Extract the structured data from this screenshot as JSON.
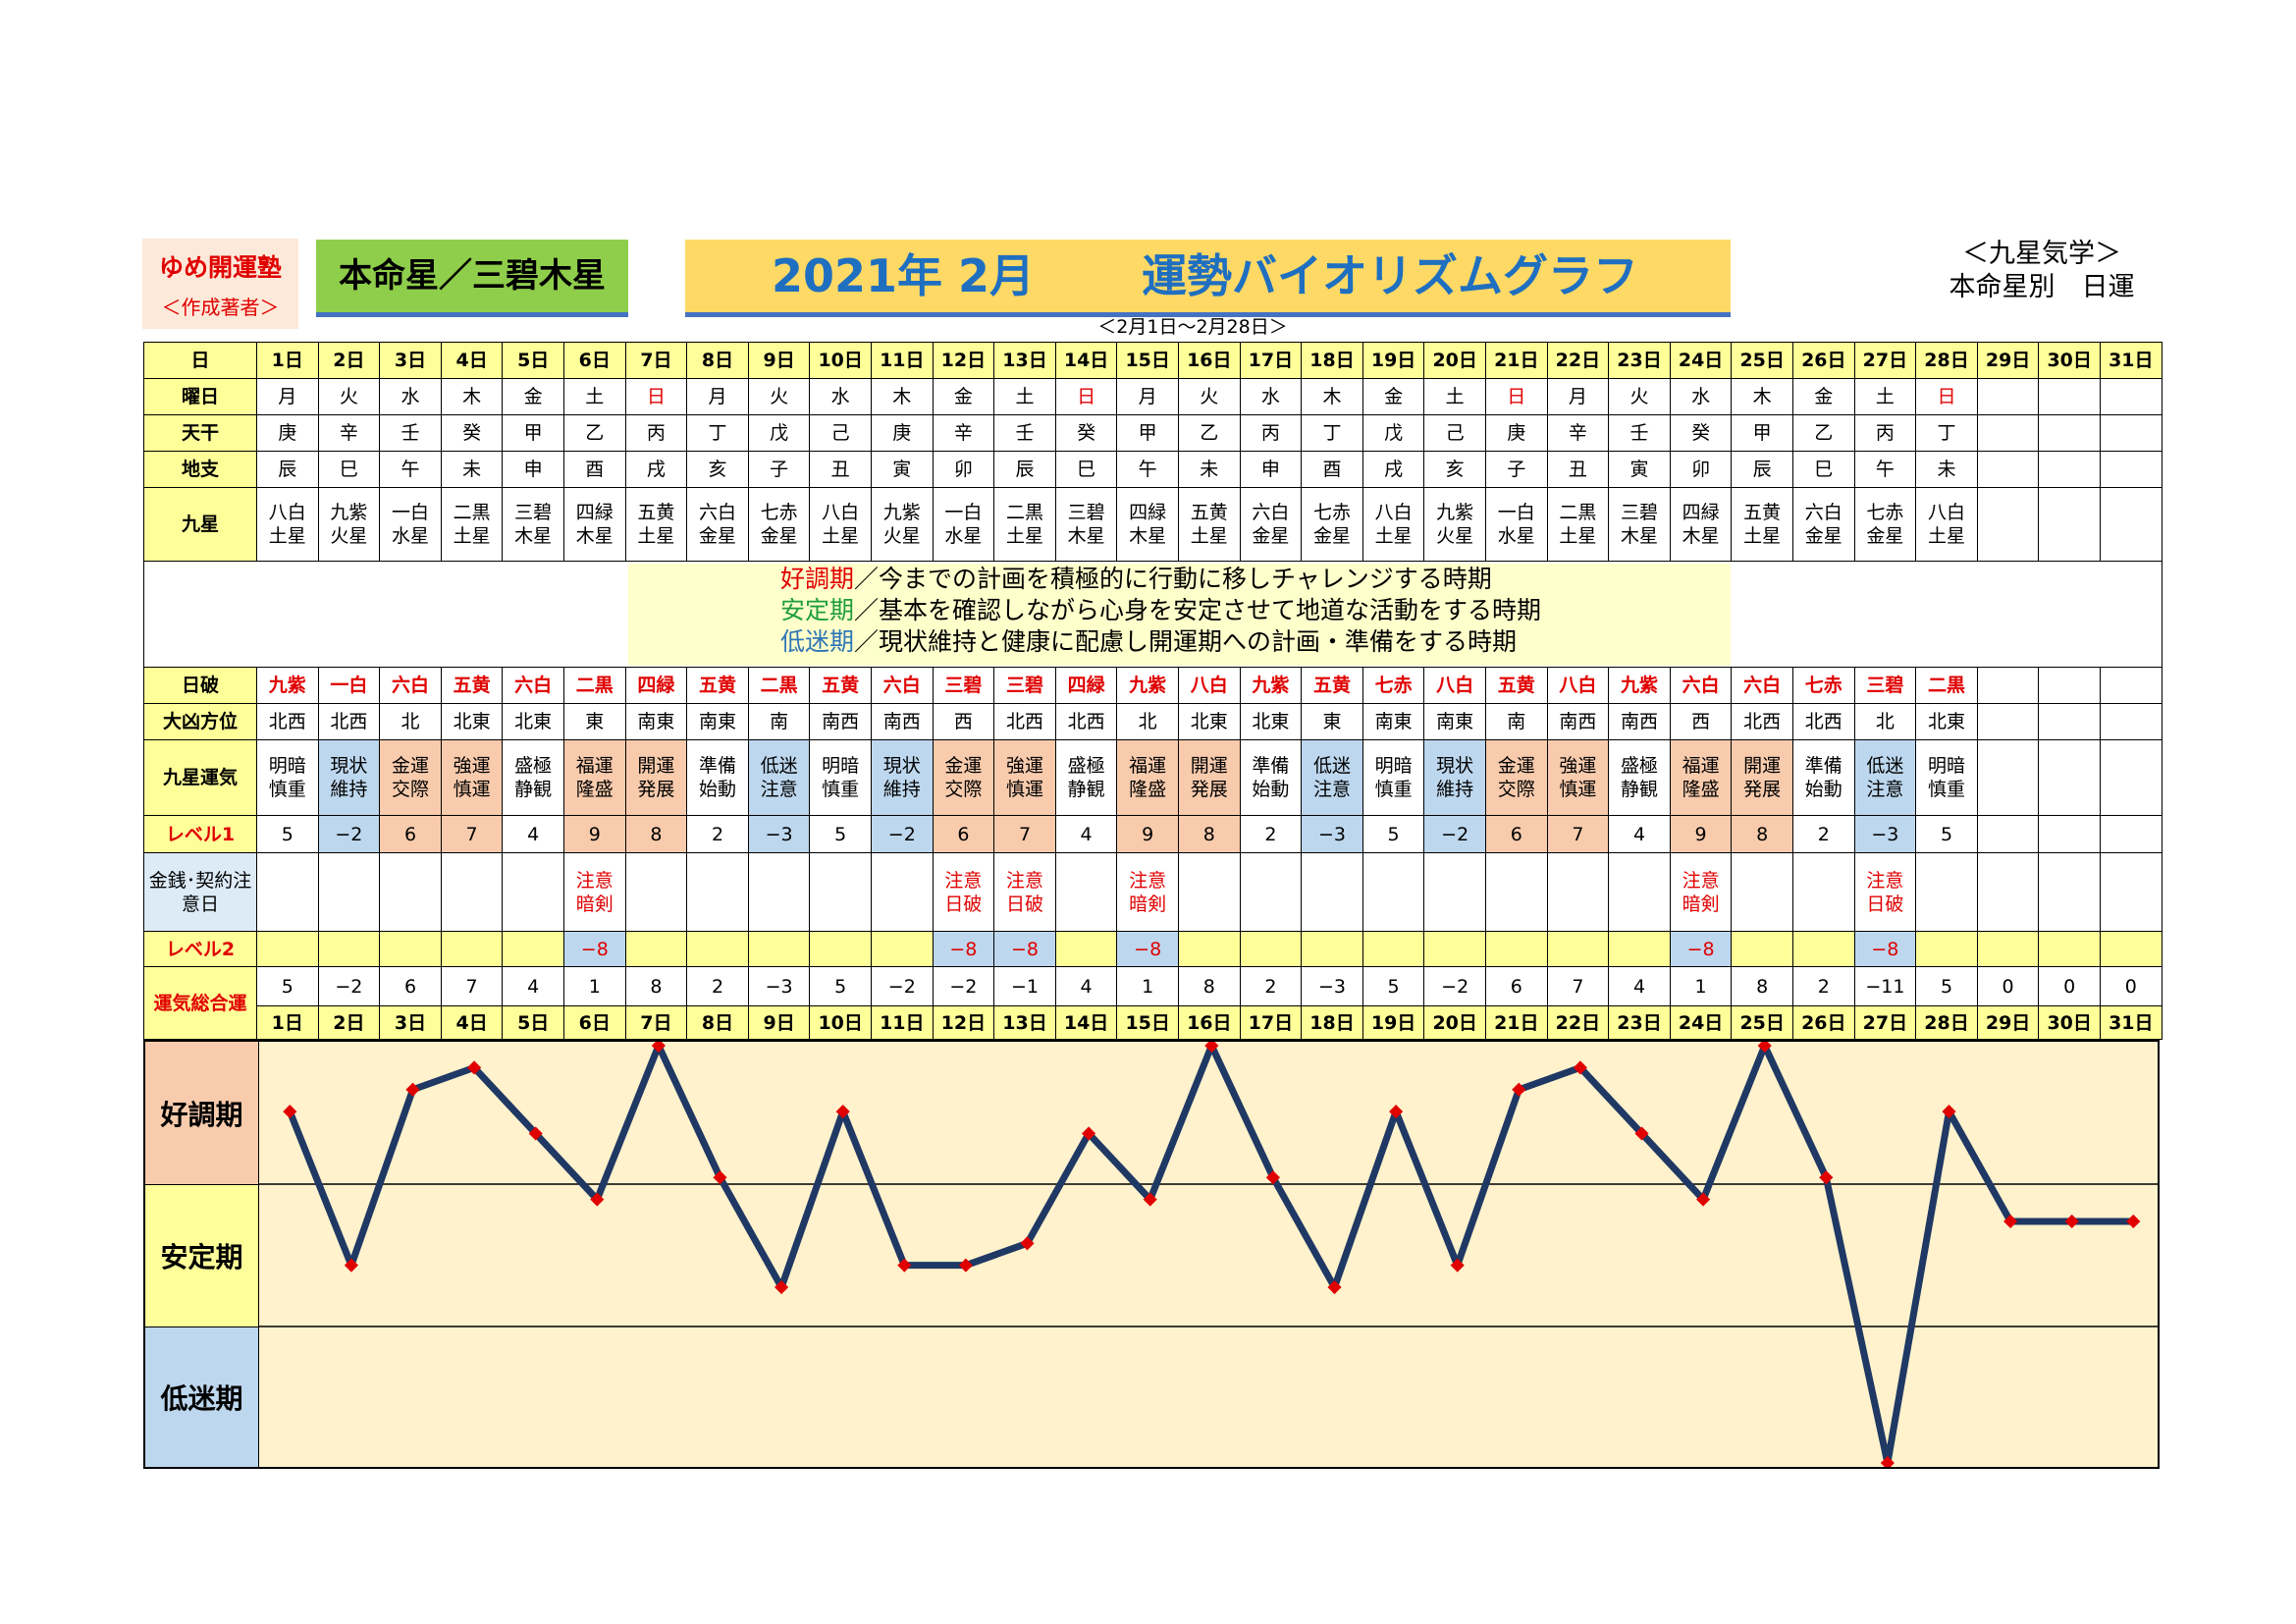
{
  "header": {
    "juku_name": "ゆめ開運塾",
    "juku_sub": "＜作成著者＞",
    "honmei": "本命星／三碧木星",
    "year_month": "2021年 2月",
    "title": "運勢バイオリズムグラフ",
    "range": "＜2月1日～2月28日＞",
    "kasei_line1": "＜九星気学＞",
    "kasei_line2": "本命星別　日運"
  },
  "row_labels": {
    "day": "日",
    "weekday": "曜日",
    "tenkan": "天干",
    "chishi": "地支",
    "kyusei": "九星",
    "nippa": "日破",
    "daikyo": "大凶方位",
    "unki": "九星運気",
    "level1": "レベル1",
    "kinsen": "金銭･契約注意日",
    "level2": "レベル2",
    "sogo": "運気総合運"
  },
  "legend": {
    "good_label": "好調期",
    "good_text": "／今までの計画を積極的に行動に移しチャレンジする時期",
    "stable_label": "安定期",
    "stable_text": "／基本を確認しながら心身を安定させて地道な活動をする時期",
    "low_label": "低迷期",
    "low_text": "／現状維持と健康に配慮し開運期への計画・準備をする時期"
  },
  "zones": [
    "好調期",
    "安定期",
    "低迷期"
  ],
  "days": [
    "1日",
    "2日",
    "3日",
    "4日",
    "5日",
    "6日",
    "7日",
    "8日",
    "9日",
    "10日",
    "11日",
    "12日",
    "13日",
    "14日",
    "15日",
    "16日",
    "17日",
    "18日",
    "19日",
    "20日",
    "21日",
    "22日",
    "23日",
    "24日",
    "25日",
    "26日",
    "27日",
    "28日",
    "29日",
    "30日",
    "31日"
  ],
  "weekday": [
    "月",
    "火",
    "水",
    "木",
    "金",
    "土",
    "日",
    "月",
    "火",
    "水",
    "木",
    "金",
    "土",
    "日",
    "月",
    "火",
    "水",
    "木",
    "金",
    "土",
    "日",
    "月",
    "火",
    "水",
    "木",
    "金",
    "土",
    "日",
    "",
    "",
    ""
  ],
  "tenkan": [
    "庚",
    "辛",
    "壬",
    "癸",
    "甲",
    "乙",
    "丙",
    "丁",
    "戊",
    "己",
    "庚",
    "辛",
    "壬",
    "癸",
    "甲",
    "乙",
    "丙",
    "丁",
    "戊",
    "己",
    "庚",
    "辛",
    "壬",
    "癸",
    "甲",
    "乙",
    "丙",
    "丁",
    "",
    "",
    ""
  ],
  "chishi": [
    "辰",
    "巳",
    "午",
    "未",
    "申",
    "酉",
    "戌",
    "亥",
    "子",
    "丑",
    "寅",
    "卯",
    "辰",
    "巳",
    "午",
    "未",
    "申",
    "酉",
    "戌",
    "亥",
    "子",
    "丑",
    "寅",
    "卯",
    "辰",
    "巳",
    "午",
    "未",
    "",
    "",
    ""
  ],
  "kyusei": [
    [
      "八白",
      "土星"
    ],
    [
      "九紫",
      "火星"
    ],
    [
      "一白",
      "水星"
    ],
    [
      "二黒",
      "土星"
    ],
    [
      "三碧",
      "木星"
    ],
    [
      "四緑",
      "木星"
    ],
    [
      "五黄",
      "土星"
    ],
    [
      "六白",
      "金星"
    ],
    [
      "七赤",
      "金星"
    ],
    [
      "八白",
      "土星"
    ],
    [
      "九紫",
      "火星"
    ],
    [
      "一白",
      "水星"
    ],
    [
      "二黒",
      "土星"
    ],
    [
      "三碧",
      "木星"
    ],
    [
      "四緑",
      "木星"
    ],
    [
      "五黄",
      "土星"
    ],
    [
      "六白",
      "金星"
    ],
    [
      "七赤",
      "金星"
    ],
    [
      "八白",
      "土星"
    ],
    [
      "九紫",
      "火星"
    ],
    [
      "一白",
      "水星"
    ],
    [
      "二黒",
      "土星"
    ],
    [
      "三碧",
      "木星"
    ],
    [
      "四緑",
      "木星"
    ],
    [
      "五黄",
      "土星"
    ],
    [
      "六白",
      "金星"
    ],
    [
      "七赤",
      "金星"
    ],
    [
      "八白",
      "土星"
    ],
    [
      "",
      ""
    ],
    [
      "",
      ""
    ],
    [
      "",
      ""
    ]
  ],
  "nippa": [
    "九紫",
    "一白",
    "六白",
    "五黄",
    "六白",
    "二黒",
    "四緑",
    "五黄",
    "二黒",
    "五黄",
    "六白",
    "三碧",
    "三碧",
    "四緑",
    "九紫",
    "八白",
    "九紫",
    "五黄",
    "七赤",
    "八白",
    "五黄",
    "八白",
    "九紫",
    "六白",
    "六白",
    "七赤",
    "三碧",
    "二黒",
    "",
    "",
    ""
  ],
  "daikyo": [
    "北西",
    "北西",
    "北",
    "北東",
    "北東",
    "東",
    "南東",
    "南東",
    "南",
    "南西",
    "南西",
    "西",
    "北西",
    "北西",
    "北",
    "北東",
    "北東",
    "東",
    "南東",
    "南東",
    "南",
    "南西",
    "南西",
    "西",
    "北西",
    "北西",
    "北",
    "北東",
    "",
    "",
    ""
  ],
  "unki": [
    [
      "明暗",
      "慎重"
    ],
    [
      "現状",
      "維持"
    ],
    [
      "金運",
      "交際"
    ],
    [
      "強運",
      "慎運"
    ],
    [
      "盛極",
      "静観"
    ],
    [
      "福運",
      "隆盛"
    ],
    [
      "開運",
      "発展"
    ],
    [
      "準備",
      "始動"
    ],
    [
      "低迷",
      "注意"
    ],
    [
      "明暗",
      "慎重"
    ],
    [
      "現状",
      "維持"
    ],
    [
      "金運",
      "交際"
    ],
    [
      "強運",
      "慎運"
    ],
    [
      "盛極",
      "静観"
    ],
    [
      "福運",
      "隆盛"
    ],
    [
      "開運",
      "発展"
    ],
    [
      "準備",
      "始動"
    ],
    [
      "低迷",
      "注意"
    ],
    [
      "明暗",
      "慎重"
    ],
    [
      "現状",
      "維持"
    ],
    [
      "金運",
      "交際"
    ],
    [
      "強運",
      "慎運"
    ],
    [
      "盛極",
      "静観"
    ],
    [
      "福運",
      "隆盛"
    ],
    [
      "開運",
      "発展"
    ],
    [
      "準備",
      "始動"
    ],
    [
      "低迷",
      "注意"
    ],
    [
      "明暗",
      "慎重"
    ],
    [
      "",
      ""
    ],
    [
      "",
      ""
    ],
    [
      "",
      ""
    ]
  ],
  "level1": [
    "5",
    "−2",
    "6",
    "7",
    "4",
    "9",
    "8",
    "2",
    "−3",
    "5",
    "−2",
    "6",
    "7",
    "4",
    "9",
    "8",
    "2",
    "−3",
    "5",
    "−2",
    "6",
    "7",
    "4",
    "9",
    "8",
    "2",
    "−3",
    "5",
    "",
    "",
    ""
  ],
  "kinsen": [
    [
      "",
      ""
    ],
    [
      "",
      ""
    ],
    [
      "",
      ""
    ],
    [
      "",
      ""
    ],
    [
      "",
      ""
    ],
    [
      "注意",
      "暗剣"
    ],
    [
      "",
      ""
    ],
    [
      "",
      ""
    ],
    [
      "",
      ""
    ],
    [
      "",
      ""
    ],
    [
      "",
      ""
    ],
    [
      "注意",
      "日破"
    ],
    [
      "注意",
      "日破"
    ],
    [
      "",
      ""
    ],
    [
      "注意",
      "暗剣"
    ],
    [
      "",
      ""
    ],
    [
      "",
      ""
    ],
    [
      "",
      ""
    ],
    [
      "",
      ""
    ],
    [
      "",
      ""
    ],
    [
      "",
      ""
    ],
    [
      "",
      ""
    ],
    [
      "",
      ""
    ],
    [
      "注意",
      "暗剣"
    ],
    [
      "",
      ""
    ],
    [
      "",
      ""
    ],
    [
      "注意",
      "日破"
    ],
    [
      "",
      ""
    ],
    [
      "",
      ""
    ],
    [
      "",
      ""
    ],
    [
      "",
      ""
    ]
  ],
  "level2": [
    "",
    "",
    "",
    "",
    "",
    "−8",
    "",
    "",
    "",
    "",
    "",
    "−8",
    "−8",
    "",
    "−8",
    "",
    "",
    "",
    "",
    "",
    "",
    "",
    "",
    "−8",
    "",
    "",
    "−8",
    "",
    "",
    "",
    ""
  ],
  "sogo": [
    "5",
    "−2",
    "6",
    "7",
    "4",
    "1",
    "8",
    "2",
    "−3",
    "5",
    "−2",
    "−2",
    "−1",
    "4",
    "1",
    "8",
    "2",
    "−3",
    "5",
    "−2",
    "6",
    "7",
    "4",
    "1",
    "8",
    "2",
    "−11",
    "5",
    "0",
    "0",
    "0"
  ],
  "colors": {
    "line": "#1f3864",
    "marker": "#e00000",
    "chart_bg": "#fff2cc",
    "good": "#f8cbad",
    "stable": "#ffff99",
    "low": "#bdd7ee"
  },
  "chart_data": {
    "type": "line",
    "x": [
      "1日",
      "2日",
      "3日",
      "4日",
      "5日",
      "6日",
      "7日",
      "8日",
      "9日",
      "10日",
      "11日",
      "12日",
      "13日",
      "14日",
      "15日",
      "16日",
      "17日",
      "18日",
      "19日",
      "20日",
      "21日",
      "22日",
      "23日",
      "24日",
      "25日",
      "26日",
      "27日",
      "28日",
      "29日",
      "30日",
      "31日"
    ],
    "series": [
      {
        "values": [
          5,
          -2,
          6,
          7,
          4,
          1,
          8,
          2,
          -3,
          5,
          -2,
          -2,
          -1,
          4,
          1,
          8,
          2,
          -3,
          5,
          -2,
          6,
          7,
          4,
          1,
          8,
          2,
          -11,
          5,
          0,
          0,
          0
        ]
      }
    ],
    "ylim": [
      -11,
      8
    ],
    "bands": [
      "好調期",
      "安定期",
      "低迷期"
    ],
    "grid": false
  }
}
